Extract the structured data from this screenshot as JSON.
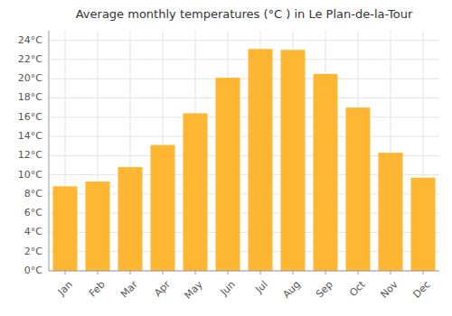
{
  "chart_data": {
    "type": "bar",
    "title": "Average monthly temperatures (°C ) in Le Plan-de-la-Tour",
    "categories": [
      "Jan",
      "Feb",
      "Mar",
      "Apr",
      "May",
      "Jun",
      "Jul",
      "Aug",
      "Sep",
      "Oct",
      "Nov",
      "Dec"
    ],
    "values": [
      8.8,
      9.3,
      10.8,
      13.1,
      16.4,
      20.1,
      23.1,
      23.0,
      20.5,
      17.0,
      12.3,
      9.7
    ],
    "color": "#FFB733",
    "ylim": [
      0,
      25
    ],
    "yticks": [
      {
        "value": 0,
        "label": "0°C"
      },
      {
        "value": 2,
        "label": "2°C"
      },
      {
        "value": 4,
        "label": "4°C"
      },
      {
        "value": 6,
        "label": "6°C"
      },
      {
        "value": 8,
        "label": "8°C"
      },
      {
        "value": 10,
        "label": "10°C"
      },
      {
        "value": 12,
        "label": "12°C"
      },
      {
        "value": 14,
        "label": "14°C"
      },
      {
        "value": 16,
        "label": "16°C"
      },
      {
        "value": 18,
        "label": "18°C"
      },
      {
        "value": 20,
        "label": "20°C"
      },
      {
        "value": 22,
        "label": "22°C"
      },
      {
        "value": 24,
        "label": "24°C"
      }
    ],
    "grid": true
  }
}
